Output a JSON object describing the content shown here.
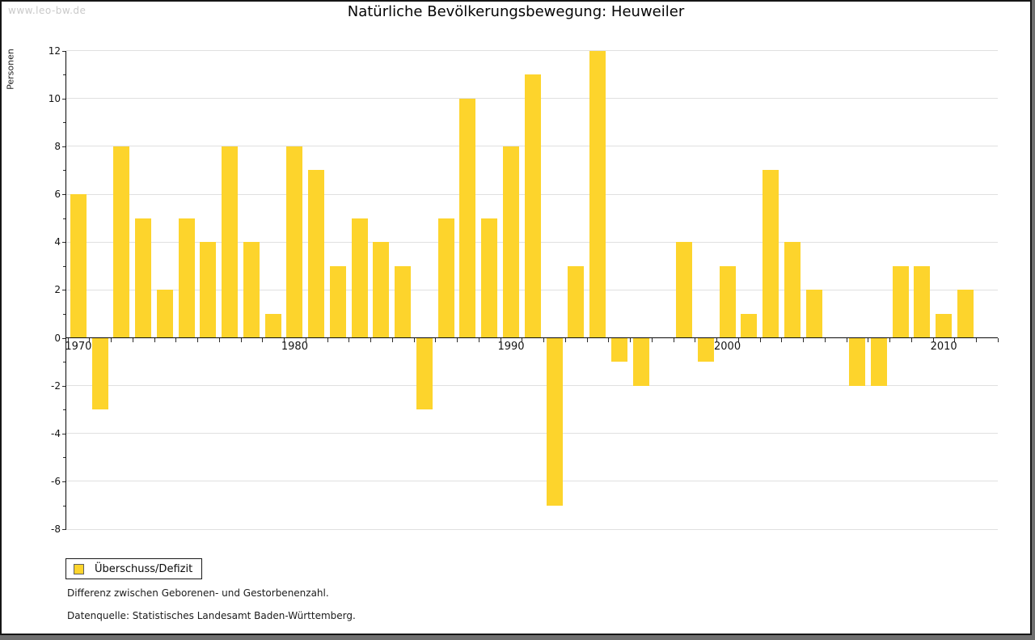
{
  "header": {
    "watermark": "www.leo-bw.de",
    "title": "Natürliche Bevölkerungsbewegung: Heuweiler"
  },
  "legend": {
    "label": "Überschuss/Defizit"
  },
  "footer": {
    "note1": "Differenz zwischen Geborenen- und Gestorbenenzahl.",
    "note2": "Datenquelle: Statistisches Landesamt Baden-Württemberg."
  },
  "colors": {
    "bar": "#fdd42c",
    "grid": "#e0e0e0",
    "axis": "#0a0a0a",
    "watermark": "#c9c9c9",
    "frame_shadow": "#6f6f6f"
  },
  "chart_data": {
    "type": "bar",
    "title": "Natürliche Bevölkerungsbewegung: Heuweiler",
    "xlabel": "",
    "ylabel": "Personen",
    "legend": [
      "Überschuss/Defizit"
    ],
    "legend_position": "bottom-left",
    "grid": "horizontal",
    "ylim": [
      -8,
      12
    ],
    "ytick_step": 2,
    "yminor_step": 1,
    "xtick_labels": [
      1970,
      1980,
      1990,
      2000,
      2010
    ],
    "categories": [
      1970,
      1971,
      1972,
      1973,
      1974,
      1975,
      1976,
      1977,
      1978,
      1979,
      1980,
      1981,
      1982,
      1983,
      1984,
      1985,
      1986,
      1987,
      1988,
      1989,
      1990,
      1991,
      1992,
      1993,
      1994,
      1995,
      1996,
      1997,
      1998,
      1999,
      2000,
      2001,
      2002,
      2003,
      2004,
      2005,
      2006,
      2007,
      2008,
      2009,
      2010,
      2011
    ],
    "values": [
      6,
      -3,
      8,
      5,
      2,
      5,
      4,
      8,
      4,
      1,
      8,
      7,
      3,
      5,
      4,
      3,
      -3,
      5,
      10,
      5,
      8,
      11,
      -7,
      3,
      12,
      -1,
      -2,
      0,
      4,
      -1,
      3,
      1,
      7,
      4,
      2,
      0,
      -2,
      -2,
      3,
      3,
      1,
      2
    ]
  }
}
